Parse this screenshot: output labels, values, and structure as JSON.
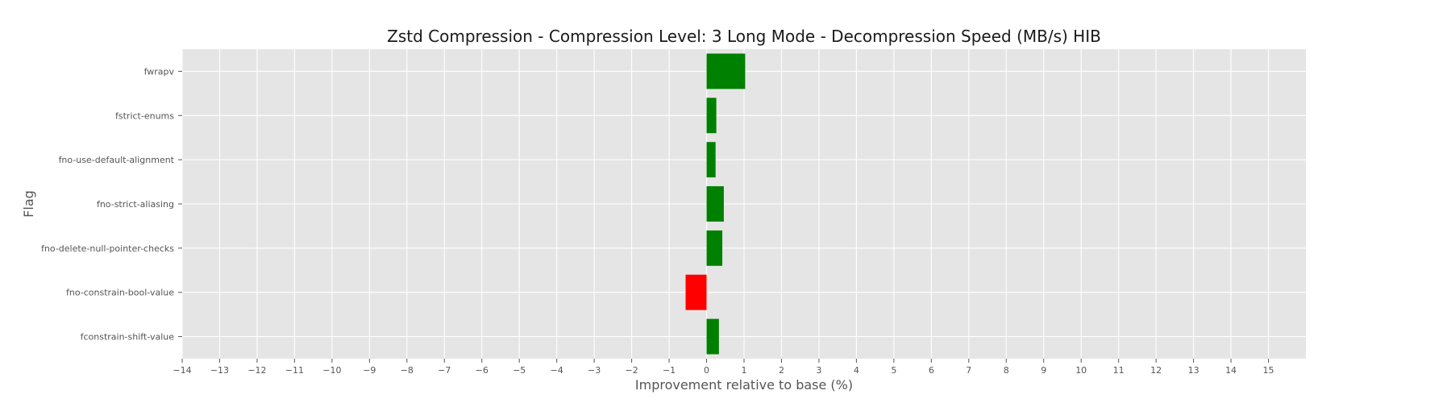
{
  "chart_data": {
    "type": "bar",
    "orientation": "horizontal",
    "title": "Zstd Compression - Compression Level: 3 Long Mode - Decompression Speed (MB/s) HIB",
    "xlabel": "Improvement relative to base (%)",
    "ylabel": "Flag",
    "xlim": [
      -14,
      16
    ],
    "xticks": [
      -14,
      -13,
      -12,
      -11,
      -10,
      -9,
      -8,
      -7,
      -6,
      -5,
      -4,
      -3,
      -2,
      -1,
      0,
      1,
      2,
      3,
      4,
      5,
      6,
      7,
      8,
      9,
      10,
      11,
      12,
      13,
      14,
      15
    ],
    "grid": true,
    "categories": [
      "fwrapv",
      "fstrict-enums",
      "fno-use-default-alignment",
      "fno-strict-aliasing",
      "fno-delete-null-pointer-checks",
      "fno-constrain-bool-value",
      "fconstrain-shift-value"
    ],
    "values": [
      1.03,
      0.26,
      0.24,
      0.46,
      0.42,
      -0.56,
      0.33
    ],
    "colors": {
      "positive": "#008000",
      "negative": "#ff0000",
      "plot_background": "#e5e5e5",
      "grid": "#ffffff",
      "text": "#555555",
      "title": "#1a1a1a"
    }
  }
}
